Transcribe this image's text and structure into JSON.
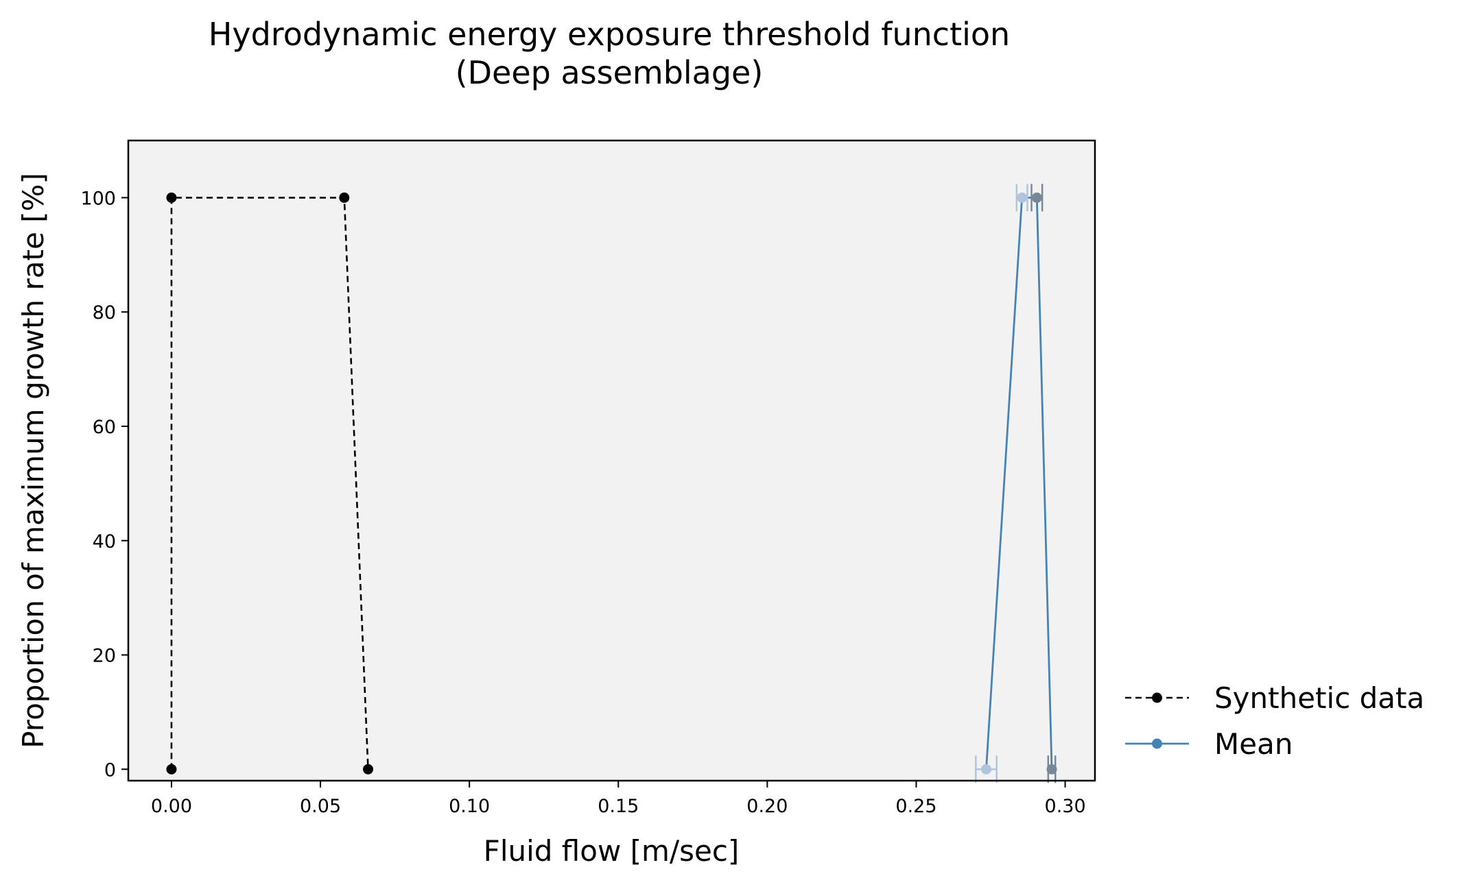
{
  "chart_data": {
    "type": "line",
    "title": "Hydrodynamic energy exposure threshold function",
    "subtitle": "(Deep assemblage)",
    "xlabel": "Fluid flow [m/sec]",
    "ylabel": "Proportion of maximum growth rate [%]",
    "xlim": [
      -0.0145,
      0.31
    ],
    "ylim": [
      -2,
      110
    ],
    "xticks": [
      0.0,
      0.05,
      0.1,
      0.15,
      0.2,
      0.25,
      0.3
    ],
    "xtick_labels": [
      "0.00",
      "0.05",
      "0.10",
      "0.15",
      "0.20",
      "0.25",
      "0.30"
    ],
    "yticks": [
      0,
      20,
      40,
      60,
      80,
      100
    ],
    "ytick_labels": [
      "0",
      "20",
      "40",
      "60",
      "80",
      "100"
    ],
    "grid": false,
    "legend_position": "right-bottom",
    "background_color": "#f2f2f2",
    "series": [
      {
        "name": "Synthetic data",
        "style": "dashed",
        "color": "#000000",
        "points": [
          {
            "x": 0.0,
            "y": 0
          },
          {
            "x": 0.0,
            "y": 100
          },
          {
            "x": 0.058,
            "y": 100
          },
          {
            "x": 0.066,
            "y": 0
          }
        ]
      },
      {
        "name": "Mean",
        "style": "solid",
        "color": "#4682b4",
        "points": [
          {
            "x": 0.2735,
            "y": 0,
            "xerr": 0.0035,
            "marker_color": "#b0c4de"
          },
          {
            "x": 0.2855,
            "y": 100,
            "xerr": 0.0018,
            "marker_color": "#b0c4de"
          },
          {
            "x": 0.2905,
            "y": 100,
            "xerr": 0.0018,
            "marker_color": "#778899"
          },
          {
            "x": 0.2955,
            "y": 0,
            "xerr": 0.0012,
            "marker_color": "#778899"
          }
        ]
      }
    ]
  }
}
